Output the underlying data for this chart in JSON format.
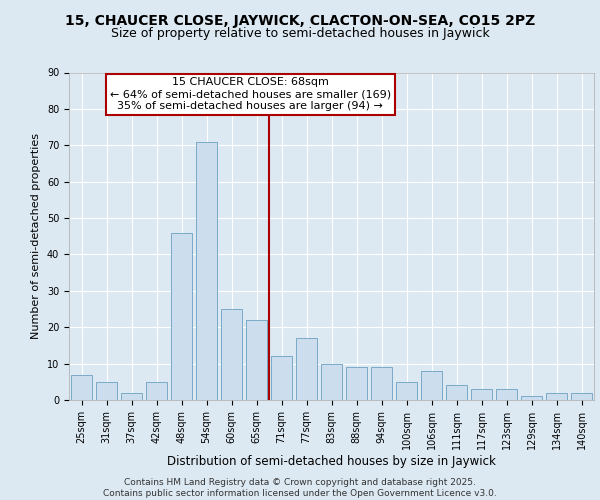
{
  "title1": "15, CHAUCER CLOSE, JAYWICK, CLACTON-ON-SEA, CO15 2PZ",
  "title2": "Size of property relative to semi-detached houses in Jaywick",
  "xlabel": "Distribution of semi-detached houses by size in Jaywick",
  "ylabel": "Number of semi-detached properties",
  "categories": [
    "25sqm",
    "31sqm",
    "37sqm",
    "42sqm",
    "48sqm",
    "54sqm",
    "60sqm",
    "65sqm",
    "71sqm",
    "77sqm",
    "83sqm",
    "88sqm",
    "94sqm",
    "100sqm",
    "106sqm",
    "111sqm",
    "117sqm",
    "123sqm",
    "129sqm",
    "134sqm",
    "140sqm"
  ],
  "values": [
    7,
    5,
    2,
    5,
    46,
    71,
    25,
    22,
    12,
    17,
    10,
    9,
    9,
    5,
    8,
    4,
    3,
    3,
    1,
    2,
    2
  ],
  "bar_color": "#ccdded",
  "bar_edge_color": "#7aaac8",
  "vline_color": "#aa0000",
  "annotation_title": "15 CHAUCER CLOSE: 68sqm",
  "annotation_line1": "← 64% of semi-detached houses are smaller (169)",
  "annotation_line2": "35% of semi-detached houses are larger (94) →",
  "annotation_box_color": "#ffffff",
  "annotation_box_edge": "#aa0000",
  "ylim": [
    0,
    90
  ],
  "yticks": [
    0,
    10,
    20,
    30,
    40,
    50,
    60,
    70,
    80,
    90
  ],
  "background_color": "#dde9f2",
  "plot_bg_color": "#dde9f2",
  "footer_line1": "Contains HM Land Registry data © Crown copyright and database right 2025.",
  "footer_line2": "Contains public sector information licensed under the Open Government Licence v3.0.",
  "title1_fontsize": 10,
  "title2_fontsize": 9,
  "xlabel_fontsize": 8.5,
  "ylabel_fontsize": 8,
  "tick_fontsize": 7,
  "annotation_fontsize": 8,
  "footer_fontsize": 6.5
}
